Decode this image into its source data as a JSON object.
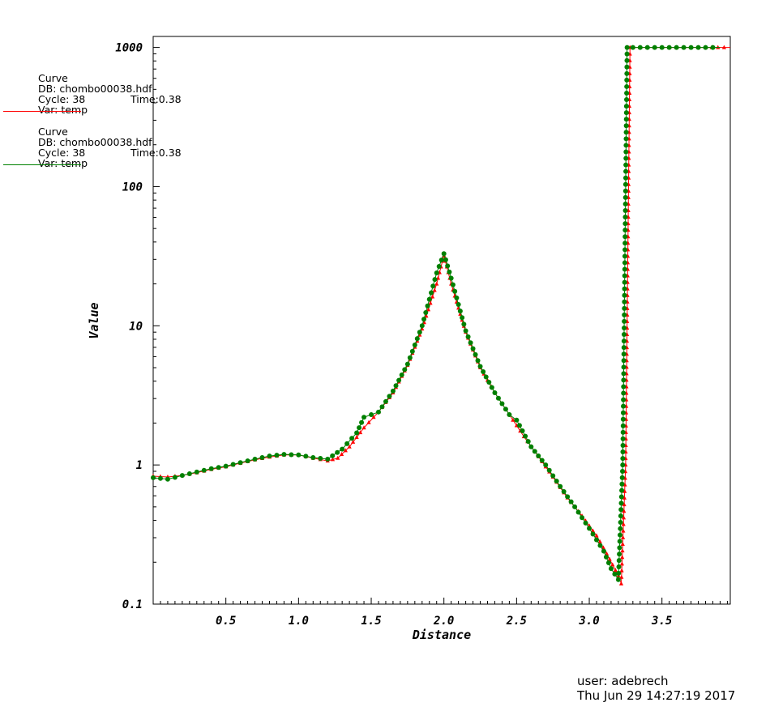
{
  "legend": [
    {
      "title": "Curve",
      "db": "DB: chombo00038.hdf",
      "cycle": "Cycle: 38",
      "time": "Time:0.38",
      "var": "Var: temp",
      "color": "#ff0000"
    },
    {
      "title": "Curve",
      "db": "DB: chombo00038.hdf",
      "cycle": "Cycle: 38",
      "time": "Time:0.38",
      "var": "Var: temp",
      "color": "#008000"
    }
  ],
  "footer": {
    "user": "user: adebrech",
    "date": "Thu Jun 29 14:27:19 2017"
  },
  "chart_data": {
    "type": "line",
    "xlabel": "Distance",
    "ylabel": "Value",
    "xlim": [
      0.0,
      3.97
    ],
    "ylim": [
      0.1,
      1200
    ],
    "yscale": "log",
    "xticks": [
      "0.5",
      "1.0",
      "1.5",
      "2.0",
      "2.5",
      "3.0",
      "3.5"
    ],
    "yticks": [
      "0.1",
      "1",
      "10",
      "100",
      "1000"
    ],
    "series": [
      {
        "color": "#ff0000",
        "marker": "triangle",
        "x": [
          0.0,
          0.1,
          0.2,
          0.3,
          0.4,
          0.5,
          0.6,
          0.7,
          0.8,
          0.9,
          1.0,
          1.1,
          1.2,
          1.27,
          1.35,
          1.45,
          1.55,
          1.65,
          1.75,
          1.85,
          1.95,
          2.0,
          2.05,
          2.15,
          2.25,
          2.35,
          2.45,
          2.55,
          2.65,
          2.75,
          2.85,
          2.95,
          3.05,
          3.12,
          3.2,
          3.22,
          3.25,
          3.28,
          3.3,
          3.4,
          3.6,
          3.8,
          3.97
        ],
        "y": [
          0.83,
          0.82,
          0.84,
          0.88,
          0.93,
          0.97,
          1.03,
          1.09,
          1.14,
          1.18,
          1.18,
          1.12,
          1.07,
          1.12,
          1.35,
          1.85,
          2.4,
          3.3,
          5.2,
          9.5,
          20,
          32,
          20,
          9.0,
          5.0,
          3.3,
          2.3,
          1.6,
          1.15,
          0.82,
          0.58,
          0.43,
          0.31,
          0.23,
          0.16,
          0.14,
          1.0,
          1000,
          1000,
          1000,
          1000,
          1000,
          1000
        ]
      },
      {
        "color": "#008000",
        "marker": "circle",
        "x": [
          0.0,
          0.1,
          0.2,
          0.3,
          0.4,
          0.5,
          0.6,
          0.7,
          0.8,
          0.9,
          1.0,
          1.1,
          1.2,
          1.3,
          1.4,
          1.45,
          1.55,
          1.65,
          1.75,
          1.85,
          1.95,
          2.0,
          2.05,
          2.15,
          2.25,
          2.35,
          2.45,
          2.5,
          2.6,
          2.7,
          2.8,
          2.9,
          3.0,
          3.1,
          3.15,
          3.2,
          3.23,
          3.26,
          3.3,
          3.4,
          3.6,
          3.8,
          3.9
        ],
        "y": [
          0.81,
          0.79,
          0.84,
          0.89,
          0.94,
          0.98,
          1.04,
          1.1,
          1.16,
          1.19,
          1.18,
          1.13,
          1.1,
          1.3,
          1.7,
          2.2,
          2.4,
          3.4,
          5.3,
          10,
          24,
          33,
          22,
          9.2,
          5.1,
          3.3,
          2.3,
          2.1,
          1.35,
          1.0,
          0.7,
          0.5,
          0.35,
          0.24,
          0.18,
          0.15,
          1.0,
          1000,
          1000,
          1000,
          1000,
          1000,
          1000
        ]
      }
    ]
  }
}
